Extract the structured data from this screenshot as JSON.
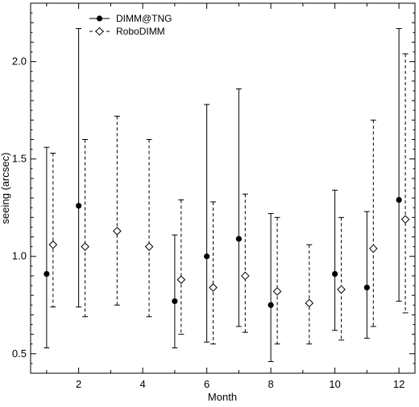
{
  "chart_data": {
    "type": "errorbar",
    "xlabel": "Month",
    "ylabel": "seeing (arcsec)",
    "xlim": [
      0.5,
      12.5
    ],
    "ylim": [
      0.4,
      2.3
    ],
    "x_ticks": [
      2,
      4,
      6,
      8,
      10,
      12
    ],
    "y_ticks": [
      0.5,
      1.0,
      1.5,
      2.0
    ],
    "y_tick_labels": [
      "0.5",
      "1.0",
      "1.5",
      "2.0"
    ],
    "legend_position": "top-left",
    "grid": false,
    "series": [
      {
        "name": "DIMM@TNG",
        "marker": "filled-circle",
        "line_style": "solid",
        "x_offset": 0,
        "points": [
          {
            "x": 1,
            "y": 0.91,
            "low": 0.53,
            "high": 1.56
          },
          {
            "x": 2,
            "y": 1.26,
            "low": 0.74,
            "high": 2.17
          },
          {
            "x": 5,
            "y": 0.77,
            "low": 0.53,
            "high": 1.11
          },
          {
            "x": 6,
            "y": 1.0,
            "low": 0.56,
            "high": 1.78
          },
          {
            "x": 7,
            "y": 1.09,
            "low": 0.64,
            "high": 1.86
          },
          {
            "x": 8,
            "y": 0.75,
            "low": 0.46,
            "high": 1.22
          },
          {
            "x": 10,
            "y": 0.91,
            "low": 0.62,
            "high": 1.34
          },
          {
            "x": 11,
            "y": 0.84,
            "low": 0.58,
            "high": 1.23
          },
          {
            "x": 12,
            "y": 1.29,
            "low": 0.77,
            "high": 2.17
          }
        ]
      },
      {
        "name": "RoboDIMM",
        "marker": "open-diamond",
        "line_style": "dashed",
        "x_offset": 0.2,
        "points": [
          {
            "x": 1,
            "y": 1.06,
            "low": 0.74,
            "high": 1.53
          },
          {
            "x": 2,
            "y": 1.05,
            "low": 0.69,
            "high": 1.6
          },
          {
            "x": 3,
            "y": 1.13,
            "low": 0.75,
            "high": 1.72
          },
          {
            "x": 4,
            "y": 1.05,
            "low": 0.69,
            "high": 1.6
          },
          {
            "x": 5,
            "y": 0.88,
            "low": 0.6,
            "high": 1.29
          },
          {
            "x": 6,
            "y": 0.84,
            "low": 0.55,
            "high": 1.28
          },
          {
            "x": 7,
            "y": 0.9,
            "low": 0.61,
            "high": 1.32
          },
          {
            "x": 8,
            "y": 0.82,
            "low": 0.55,
            "high": 1.2
          },
          {
            "x": 9,
            "y": 0.76,
            "low": 0.55,
            "high": 1.06
          },
          {
            "x": 10,
            "y": 0.83,
            "low": 0.57,
            "high": 1.2
          },
          {
            "x": 11,
            "y": 1.04,
            "low": 0.64,
            "high": 1.7
          },
          {
            "x": 12,
            "y": 1.19,
            "low": 0.71,
            "high": 2.04
          }
        ]
      }
    ]
  }
}
